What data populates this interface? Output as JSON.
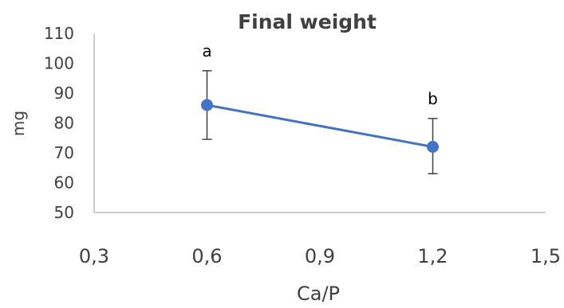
{
  "chart_data": {
    "type": "line",
    "title": "Final weight",
    "xlabel": "Ca/P",
    "ylabel": "mg",
    "xlim": [
      0.3,
      1.5
    ],
    "ylim": [
      50,
      110
    ],
    "x_ticks": [
      "0,3",
      "0,6",
      "0,9",
      "1,2",
      "1,5"
    ],
    "x_tick_values": [
      0.3,
      0.6,
      0.9,
      1.2,
      1.5
    ],
    "y_ticks": [
      "110",
      "100",
      "90",
      "80",
      "70",
      "60",
      "50"
    ],
    "y_tick_values": [
      110,
      100,
      90,
      80,
      70,
      60,
      50
    ],
    "grid": false,
    "legend": "none",
    "colors": {
      "series": "#4472c4",
      "axis": "#bfbfbf",
      "text": "#404040",
      "error_bar": "#404040"
    },
    "series": [
      {
        "x": [
          0.6,
          1.2
        ],
        "values": [
          86,
          72
        ],
        "error_low": [
          74.5,
          63
        ],
        "error_high": [
          97.5,
          81.5
        ],
        "point_labels": [
          "a",
          "b"
        ]
      }
    ]
  }
}
